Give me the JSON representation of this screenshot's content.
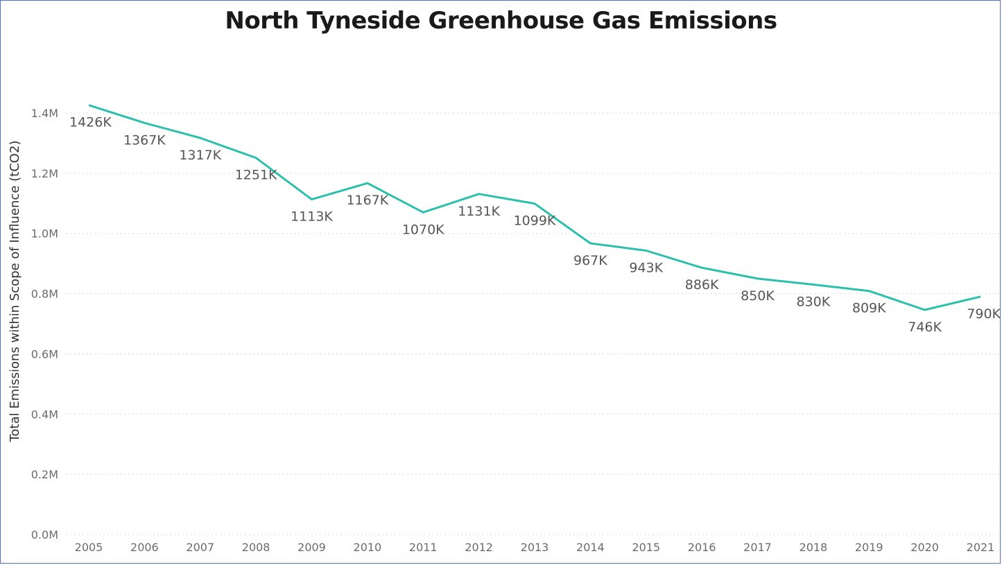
{
  "chart_data": {
    "type": "line",
    "title": "North Tyneside Greenhouse Gas Emissions",
    "ylabel": "Total Emissions within Scope of Influence (tCO2)",
    "xlabel": "",
    "x": [
      "2005",
      "2006",
      "2007",
      "2008",
      "2009",
      "2010",
      "2011",
      "2012",
      "2013",
      "2014",
      "2015",
      "2016",
      "2017",
      "2018",
      "2019",
      "2020",
      "2021"
    ],
    "series": [
      {
        "values": [
          1426,
          1367,
          1317,
          1251,
          1113,
          1167,
          1070,
          1131,
          1099,
          967,
          943,
          886,
          850,
          830,
          809,
          746,
          790
        ],
        "unit": "K tCO2",
        "color": "#2bbfae"
      }
    ],
    "data_labels": [
      "1426K",
      "1367K",
      "1317K",
      "1251K",
      "1113K",
      "1167K",
      "1070K",
      "1131K",
      "1099K",
      "967K",
      "943K",
      "886K",
      "850K",
      "830K",
      "809K",
      "746K",
      "790K"
    ],
    "y_ticks": [
      0,
      200,
      400,
      600,
      800,
      1000,
      1200,
      1400
    ],
    "y_tick_labels": [
      "0.0M",
      "0.2M",
      "0.4M",
      "0.6M",
      "0.8M",
      "1.0M",
      "1.2M",
      "1.4M"
    ],
    "ylim": [
      0,
      1400
    ],
    "grid": true,
    "legend": "none"
  }
}
